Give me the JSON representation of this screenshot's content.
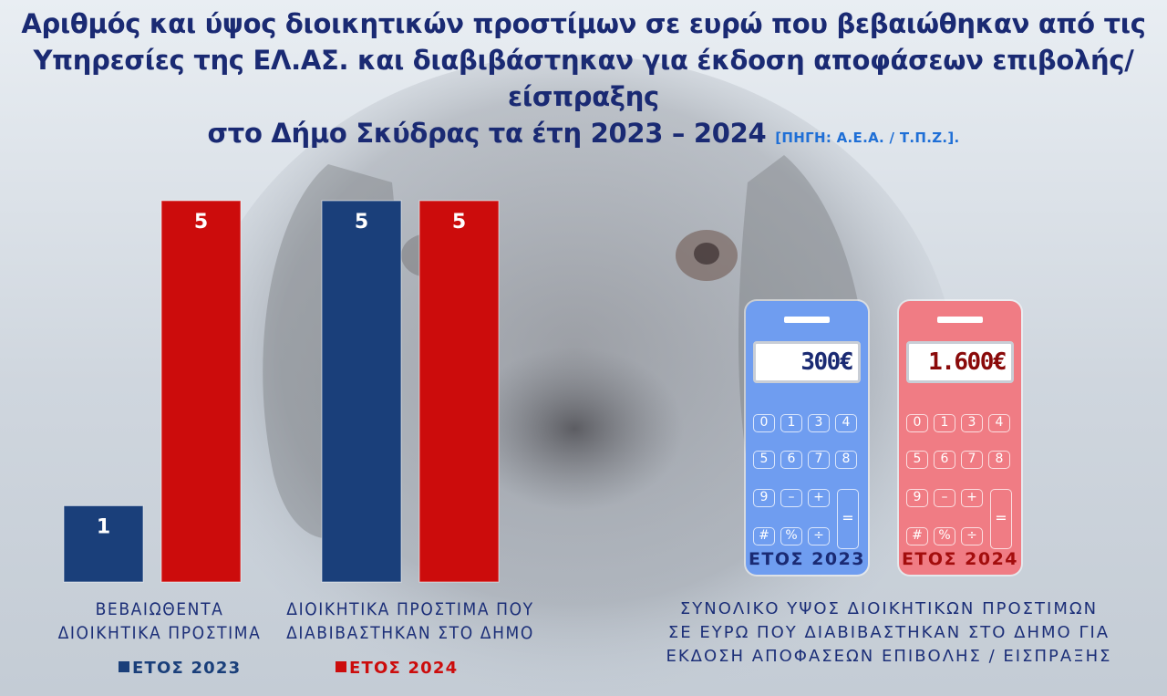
{
  "title": {
    "line1": "Αριθμός και ύψος διοικητικών προστίμων σε ευρώ που βεβαιώθηκαν από τις",
    "line2": "Υπηρεσίες της ΕΛ.ΑΣ. και διαβιβάστηκαν για έκδοση αποφάσεων επιβολής/είσπραξης",
    "line3": "στο Δήμο Σκύδρας τα έτη 2023 – 2024",
    "source": "[ΠΗΓΗ: Α.Ε.Α. / Τ.Π.Ζ.]."
  },
  "colors": {
    "series_2023": "#1a3f7a",
    "series_2024": "#cc0c0c",
    "title": "#1a2a73",
    "calc_2023": "#6f9df0",
    "calc_2024": "#f07c84"
  },
  "chart_data": {
    "type": "bar",
    "categories": [
      "ΒΕΒΑΙΩΘΕΝΤΑ ΔΙΟΙΚΗΤΙΚΑ ΠΡΟΣΤΙΜΑ",
      "ΔΙΟΙΚΗΤΙΚΑ ΠΡΟΣΤΙΜΑ ΠΟΥ ΔΙΑΒΙΒΑΣΤΗΚΑΝ ΣΤΟ ΔΗΜΟ"
    ],
    "category_lines": [
      [
        "ΒΕΒΑΙΩΘΕΝΤΑ",
        "ΔΙΟΙΚΗΤΙΚΑ ΠΡΟΣΤΙΜΑ"
      ],
      [
        "ΔΙΟΙΚΗΤΙΚΑ ΠΡΟΣΤΙΜΑ ΠΟΥ",
        "ΔΙΑΒΙΒΑΣΤΗΚΑΝ ΣΤΟ ΔΗΜΟ"
      ]
    ],
    "series": [
      {
        "name": "ΕΤΟΣ 2023",
        "values": [
          1,
          5
        ]
      },
      {
        "name": "ΕΤΟΣ 2024",
        "values": [
          5,
          5
        ]
      }
    ],
    "data_labels": true,
    "legend": "bottom",
    "grid": false,
    "ylim": [
      0,
      5
    ]
  },
  "totals": {
    "label_lines": [
      "ΣΥΝΟΛΙΚΟ ΥΨΟΣ ΔΙΟΙΚΗΤΙΚΩΝ ΠΡΟΣΤΙΜΩΝ",
      "ΣΕ ΕΥΡΩ ΠΟΥ ΔΙΑΒΙΒΑΣΤΗΚΑΝ ΣΤΟ ΔΗΜΟ ΓΙΑ",
      "ΕΚΔΟΣΗ ΑΠΟΦΑΣΕΩΝ ΕΠΙΒΟΛΗΣ / ΕΙΣΠΡΑΞΗΣ"
    ],
    "calculators": [
      {
        "display": "300€",
        "year": "ΕΤΟΣ 2023"
      },
      {
        "display": "1.600€",
        "year": "ΕΤΟΣ 2024"
      }
    ],
    "keys": [
      "0",
      "1",
      "3",
      "4",
      "5",
      "6",
      "7",
      "8",
      "9",
      "–",
      "+",
      "#",
      "%",
      "÷",
      "="
    ]
  }
}
